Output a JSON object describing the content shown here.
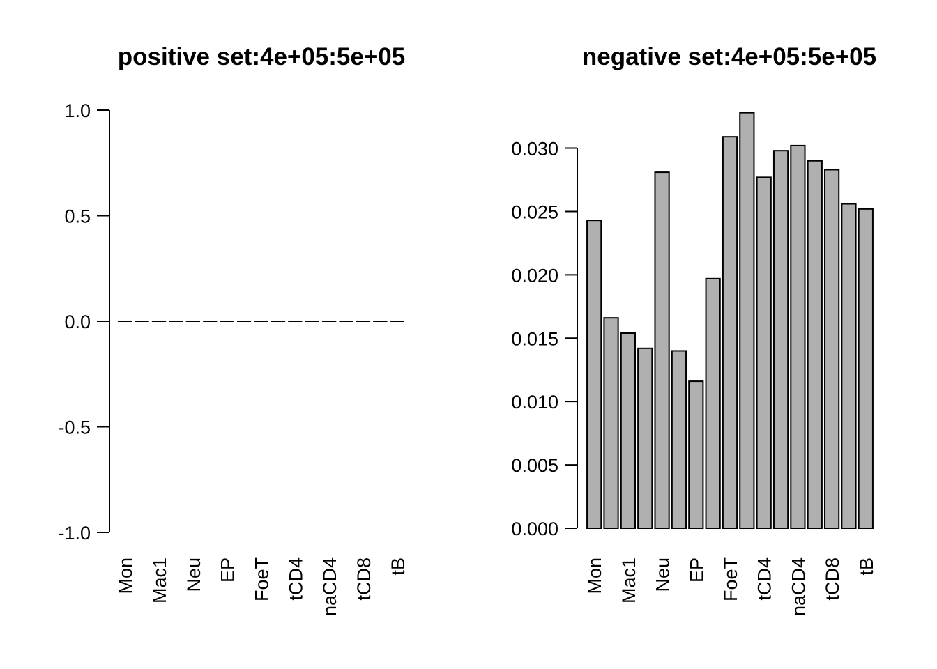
{
  "chart_data": [
    {
      "type": "bar",
      "title": "positive set:4e+05:5e+05",
      "xlabel": "",
      "ylabel": "",
      "ylim": [
        -1.0,
        1.0
      ],
      "yticks": [
        "1.0",
        "0.5",
        "0.0",
        "-0.5",
        "-1.0"
      ],
      "ytick_values": [
        1.0,
        0.5,
        0.0,
        -0.5,
        -1.0
      ],
      "categories": [
        "Mon",
        "",
        "Mac1",
        "",
        "Neu",
        "",
        "EP",
        "",
        "FoeT",
        "",
        "tCD4",
        "",
        "naCD4",
        "",
        "tCD8",
        "",
        "tB"
      ],
      "values": [
        0,
        0,
        0,
        0,
        0,
        0,
        0,
        0,
        0,
        0,
        0,
        0,
        0,
        0,
        0,
        0,
        0
      ],
      "bar_color": "#b0b0b0",
      "grid": false
    },
    {
      "type": "bar",
      "title": "negative set:4e+05:5e+05",
      "xlabel": "",
      "ylabel": "",
      "ylim": [
        0.0,
        0.033
      ],
      "yticks": [
        "0.000",
        "0.005",
        "0.010",
        "0.015",
        "0.020",
        "0.025",
        "0.030"
      ],
      "ytick_values": [
        0.0,
        0.005,
        0.01,
        0.015,
        0.02,
        0.025,
        0.03
      ],
      "categories": [
        "Mon",
        "",
        "Mac1",
        "",
        "Neu",
        "",
        "EP",
        "",
        "FoeT",
        "",
        "tCD4",
        "",
        "naCD4",
        "",
        "tCD8",
        "",
        "tB"
      ],
      "values": [
        0.0243,
        0.0166,
        0.0154,
        0.0142,
        0.0281,
        0.014,
        0.0116,
        0.0197,
        0.0309,
        0.0328,
        0.0277,
        0.0298,
        0.0302,
        0.029,
        0.0283,
        0.0256,
        0.0252
      ],
      "bar_color": "#b0b0b0",
      "grid": false
    }
  ]
}
